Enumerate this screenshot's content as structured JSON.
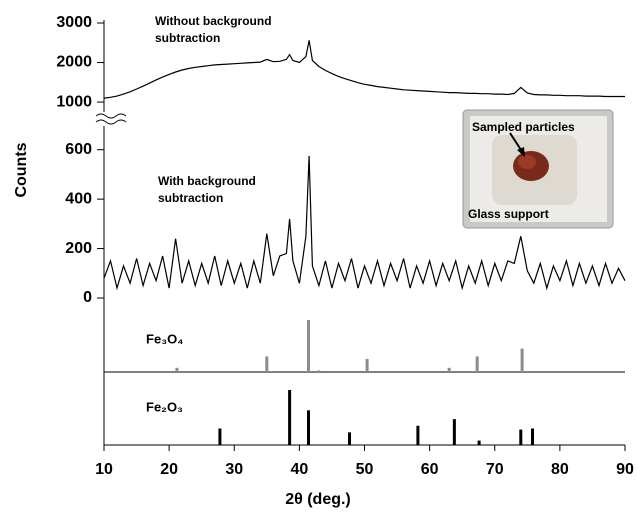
{
  "chart_data": [
    {
      "type": "line",
      "y_label": "Counts",
      "annotation": [
        "Without background",
        "subtraction"
      ],
      "color": "#000000",
      "x": [
        10,
        11,
        12,
        13,
        14,
        15,
        16,
        17,
        18,
        19,
        20,
        21,
        22,
        23,
        24,
        25,
        26,
        27,
        28,
        29,
        30,
        31,
        32,
        33,
        34,
        35,
        36,
        37,
        38,
        38.5,
        39,
        40,
        41,
        41.5,
        42,
        43,
        44,
        45,
        46,
        47,
        48,
        49,
        50,
        51,
        52,
        53,
        54,
        55,
        56,
        57,
        58,
        59,
        60,
        61,
        62,
        63,
        64,
        65,
        66,
        67,
        68,
        69,
        70,
        71,
        72,
        73,
        74,
        75,
        76,
        77,
        78,
        79,
        80,
        81,
        82,
        83,
        84,
        85,
        86,
        87,
        88,
        89,
        90
      ],
      "values": [
        1100,
        1120,
        1150,
        1200,
        1260,
        1330,
        1400,
        1480,
        1560,
        1630,
        1700,
        1760,
        1810,
        1850,
        1880,
        1900,
        1920,
        1940,
        1950,
        1960,
        1970,
        1980,
        1990,
        2000,
        2010,
        2080,
        2020,
        2030,
        2080,
        2200,
        2050,
        2000,
        2150,
        2560,
        2050,
        1900,
        1800,
        1720,
        1650,
        1590,
        1540,
        1490,
        1450,
        1420,
        1390,
        1370,
        1350,
        1330,
        1310,
        1300,
        1290,
        1280,
        1270,
        1260,
        1250,
        1240,
        1240,
        1230,
        1220,
        1220,
        1210,
        1210,
        1200,
        1200,
        1190,
        1220,
        1370,
        1230,
        1190,
        1180,
        1180,
        1170,
        1170,
        1160,
        1160,
        1160,
        1150,
        1150,
        1150,
        1140,
        1140,
        1140,
        1140
      ],
      "ylim": [
        900,
        3000
      ],
      "yticks": [
        1000,
        2000,
        3000
      ]
    },
    {
      "type": "line",
      "annotation": [
        "With background",
        "subtraction"
      ],
      "inset_labels": [
        "Sampled particles",
        "Glass support"
      ],
      "color": "#000000",
      "x": [
        10,
        11,
        12,
        13,
        14,
        15,
        16,
        17,
        18,
        19,
        20,
        21,
        22,
        23,
        24,
        25,
        26,
        27,
        28,
        29,
        30,
        31,
        32,
        33,
        34,
        35,
        36,
        37,
        38,
        38.5,
        39,
        40,
        41,
        41.5,
        42,
        43,
        44,
        45,
        46,
        47,
        48,
        49,
        50,
        51,
        52,
        53,
        54,
        55,
        56,
        57,
        58,
        59,
        60,
        61,
        62,
        63,
        64,
        65,
        66,
        67,
        68,
        69,
        70,
        71,
        72,
        73,
        74,
        75,
        76,
        77,
        78,
        79,
        80,
        81,
        82,
        83,
        84,
        85,
        86,
        87,
        88,
        89,
        90
      ],
      "values": [
        80,
        150,
        40,
        130,
        60,
        160,
        50,
        140,
        70,
        170,
        40,
        240,
        60,
        150,
        50,
        140,
        60,
        170,
        50,
        150,
        60,
        140,
        40,
        150,
        60,
        260,
        90,
        170,
        180,
        320,
        150,
        60,
        250,
        575,
        130,
        50,
        150,
        40,
        140,
        70,
        160,
        40,
        130,
        60,
        150,
        50,
        140,
        70,
        160,
        40,
        130,
        60,
        150,
        50,
        140,
        70,
        150,
        40,
        130,
        60,
        150,
        50,
        140,
        70,
        150,
        140,
        250,
        110,
        60,
        140,
        40,
        130,
        70,
        150,
        50,
        140,
        60,
        130,
        50,
        140,
        60,
        120,
        70
      ],
      "ylim": [
        0,
        700
      ],
      "yticks": [
        0,
        200,
        400,
        600
      ]
    },
    {
      "type": "stick",
      "label": "Fe₃O₄",
      "color": "#8c8c8c",
      "x": [
        21.2,
        35,
        41.4,
        43,
        50.4,
        63,
        67.3,
        74.2
      ],
      "values": [
        8,
        30,
        100,
        3,
        25,
        8,
        30,
        45
      ],
      "ylim": [
        0,
        100
      ]
    },
    {
      "type": "stick",
      "label": "Fe₂O₃",
      "color": "#000000",
      "x": [
        27.8,
        38.5,
        41.4,
        47.7,
        58.2,
        63.8,
        67.6,
        74,
        75.8
      ],
      "values": [
        30,
        100,
        63,
        23,
        35,
        47,
        8,
        28,
        30
      ],
      "ylim": [
        0,
        100
      ],
      "xlim": [
        10,
        90
      ],
      "xticks": [
        10,
        20,
        30,
        40,
        50,
        60,
        70,
        80,
        90
      ],
      "x_label": "2θ (deg.)"
    }
  ]
}
